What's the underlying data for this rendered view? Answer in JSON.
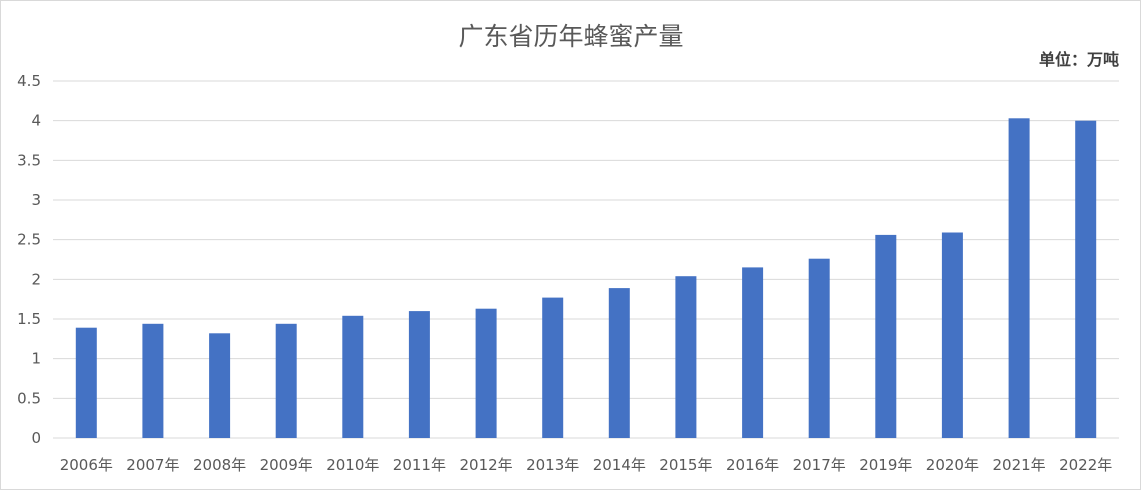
{
  "chart_data": {
    "type": "bar",
    "title": "广东省历年蜂蜜产量",
    "unit_label": "单位：万吨",
    "xlabel": "",
    "ylabel": "",
    "categories": [
      "2006年",
      "2007年",
      "2008年",
      "2009年",
      "2010年",
      "2011年",
      "2012年",
      "2013年",
      "2014年",
      "2015年",
      "2016年",
      "2017年",
      "2019年",
      "2020年",
      "2021年",
      "2022年"
    ],
    "values": [
      1.39,
      1.44,
      1.32,
      1.44,
      1.54,
      1.6,
      1.63,
      1.77,
      1.89,
      2.04,
      2.15,
      2.26,
      2.56,
      2.59,
      4.03,
      4.0
    ],
    "ylim": [
      0,
      4.5
    ],
    "yticks": [
      0,
      0.5,
      1,
      1.5,
      2,
      2.5,
      3,
      3.5,
      4,
      4.5
    ],
    "ytick_labels": [
      "0",
      "0.5",
      "1",
      "1.5",
      "2",
      "2.5",
      "3",
      "3.5",
      "4",
      "4.5"
    ],
    "grid": true,
    "legend": "none",
    "bar_color": "#4472C4",
    "grid_color": "#d9d9d9"
  }
}
